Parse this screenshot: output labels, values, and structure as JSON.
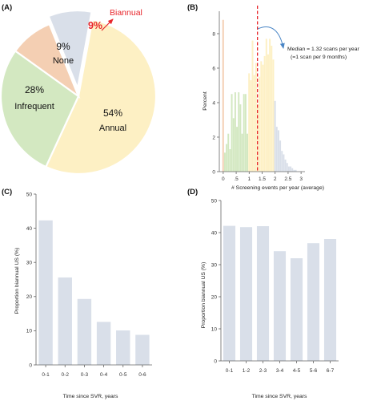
{
  "chart_data": [
    {
      "id": "A",
      "type": "pie",
      "panel_label": "(A)",
      "slices": [
        {
          "label": "Biannual",
          "value": 9,
          "value_label": "9%",
          "color": "#d9dfe9",
          "label_color": "#e8262b",
          "exploded": true
        },
        {
          "label": "Annual",
          "value": 54,
          "value_label": "54%",
          "color": "#fdf0c4",
          "label_color": "#111111"
        },
        {
          "label": "Infrequent",
          "value": 28,
          "value_label": "28%",
          "color": "#d3e8c1",
          "label_color": "#111111"
        },
        {
          "label": "None",
          "value": 9,
          "value_label": "9%",
          "color": "#f4cfb3",
          "label_color": "#111111"
        }
      ],
      "arrow_color": "#e8262b"
    },
    {
      "id": "B",
      "type": "bar",
      "subtype": "histogram",
      "panel_label": "(B)",
      "ylabel": "Percent",
      "xlabel": "# Screening events per year (average)",
      "xlim": [
        -0.15,
        3.15
      ],
      "ylim": [
        0,
        9.3
      ],
      "xticks": [
        "0",
        ".5",
        "1",
        "1.5",
        "2",
        "2.5",
        "3"
      ],
      "xtick_values": [
        0,
        0.5,
        1,
        1.5,
        2,
        2.5,
        3
      ],
      "yticks": [
        "0",
        "2",
        "4",
        "6",
        "8"
      ],
      "ytick_values": [
        0,
        2,
        4,
        6,
        8
      ],
      "bin_width": 0.0667,
      "groups": [
        {
          "name": "None",
          "color": "#f4cfb3",
          "x": [
            0
          ],
          "values": [
            8.8
          ]
        },
        {
          "name": "Infrequent",
          "color": "#d3e8c1",
          "x": [
            0.0667,
            0.1333,
            0.2,
            0.2667,
            0.3333,
            0.4,
            0.4667,
            0.5333,
            0.6,
            0.6667,
            0.7333,
            0.8,
            0.8667,
            0.9333
          ],
          "values": [
            1.1,
            1.6,
            2.2,
            1.3,
            4.5,
            3.1,
            4.6,
            2.6,
            4.6,
            3.9,
            2.2,
            4.5,
            4.5,
            2.2
          ]
        },
        {
          "name": "Annual",
          "color": "#fdf0c4",
          "x": [
            1,
            1.0667,
            1.1333,
            1.2,
            1.2667,
            1.3333,
            1.4,
            1.4667,
            1.5333,
            1.6,
            1.6667,
            1.7333,
            1.8,
            1.8667,
            1.9333
          ],
          "values": [
            5.7,
            5.3,
            7.6,
            5.6,
            6.3,
            3.9,
            5.5,
            6.4,
            6.2,
            6.7,
            7.7,
            6.8,
            7.7,
            7.3,
            6.5
          ]
        },
        {
          "name": "Biannual",
          "color": "#d9dfe9",
          "x": [
            2,
            2.0667,
            2.1333,
            2.2,
            2.2667,
            2.3333,
            2.4,
            2.4667,
            2.5333,
            2.6,
            2.6667,
            2.7333,
            2.8
          ],
          "values": [
            4.1,
            2.6,
            2.4,
            1.8,
            1.2,
            1.0,
            0.7,
            0.5,
            0.3,
            0.3,
            0.2,
            0.1,
            0.1
          ]
        }
      ],
      "median_line": {
        "x": 1.32,
        "color": "#e8262b",
        "style": "dashed"
      },
      "annotation": {
        "lines": [
          "Median = 1.32 scans per year",
          "(=1 scan per 9 months)"
        ],
        "arrow_color": "#4a86c6"
      }
    },
    {
      "id": "C",
      "type": "bar",
      "panel_label": "(C)",
      "ylabel": "Proportion biannual US (%)",
      "xlabel": "Time since SVR, years",
      "categories": [
        "0-1",
        "0-2",
        "0-3",
        "0-4",
        "0-5",
        "0-6"
      ],
      "values": [
        42.3,
        25.6,
        19.3,
        12.6,
        10.1,
        8.8
      ],
      "ylim": [
        0,
        50
      ],
      "yticks": [
        "0",
        "10",
        "20",
        "30",
        "40",
        "50"
      ],
      "ytick_values": [
        0,
        10,
        20,
        30,
        40,
        50
      ],
      "color": "#d9dfe9"
    },
    {
      "id": "D",
      "type": "bar",
      "panel_label": "(D)",
      "ylabel": "Proportion biannual US (%)",
      "xlabel": "Time since SVR, years",
      "categories": [
        "0-1",
        "1-2",
        "2-3",
        "3-4",
        "4-5",
        "5-6",
        "6-7"
      ],
      "values": [
        42.1,
        41.7,
        42.0,
        34.2,
        32.0,
        36.7,
        38.0
      ],
      "ylim": [
        0,
        50
      ],
      "yticks": [
        "0",
        "10",
        "20",
        "30",
        "40",
        "50"
      ],
      "ytick_values": [
        0,
        10,
        20,
        30,
        40,
        50
      ],
      "color": "#d9dfe9"
    }
  ]
}
